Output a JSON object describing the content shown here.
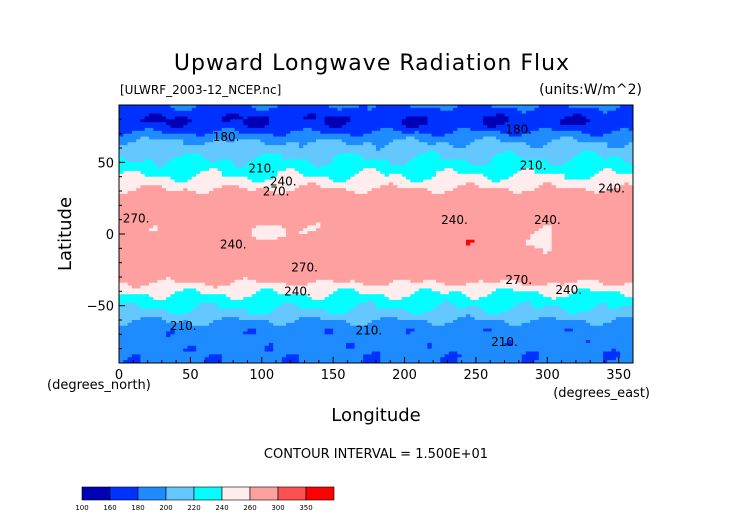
{
  "chart_data": {
    "type": "heatmap",
    "title": "Upward Longwave Radiation Flux",
    "file_label": "[ULWRF_2003-12_NCEP.nc]",
    "units_label": "(units:W/m^2)",
    "xlabel": "Longitude",
    "ylabel": "Latitude",
    "x_units_label": "(degrees_east)",
    "y_units_label": "(degrees_north)",
    "xlim": [
      0,
      360
    ],
    "ylim": [
      -90,
      90
    ],
    "x_ticks": [
      0,
      50,
      100,
      150,
      200,
      250,
      300,
      350
    ],
    "y_ticks": [
      -50,
      0,
      50
    ],
    "contour_interval_label": "CONTOUR INTERVAL = 1.500E+01",
    "contour_labels": [
      {
        "text": "180.",
        "x": 75,
        "y": 65
      },
      {
        "text": "180.",
        "x": 280,
        "y": 70
      },
      {
        "text": "210.",
        "x": 100,
        "y": 43
      },
      {
        "text": "210.",
        "x": 290,
        "y": 45
      },
      {
        "text": "240.",
        "x": 115,
        "y": 34
      },
      {
        "text": "240.",
        "x": 345,
        "y": 29
      },
      {
        "text": "270.",
        "x": 110,
        "y": 27
      },
      {
        "text": "270.",
        "x": 12,
        "y": 8
      },
      {
        "text": "240.",
        "x": 235,
        "y": 7
      },
      {
        "text": "240.",
        "x": 300,
        "y": 7
      },
      {
        "text": "240.",
        "x": 80,
        "y": -10
      },
      {
        "text": "270.",
        "x": 130,
        "y": -26
      },
      {
        "text": "270.",
        "x": 280,
        "y": -35
      },
      {
        "text": "240.",
        "x": 125,
        "y": -43
      },
      {
        "text": "240.",
        "x": 315,
        "y": -42
      },
      {
        "text": "210.",
        "x": 45,
        "y": -67
      },
      {
        "text": "210.",
        "x": 175,
        "y": -70
      },
      {
        "text": "210.",
        "x": 270,
        "y": -78
      }
    ],
    "colorbar": {
      "levels": [
        "100",
        "160",
        "180",
        "200",
        "220",
        "240",
        "260",
        "300",
        "350"
      ],
      "colors": [
        "#0000b4",
        "#0032ff",
        "#1e8cff",
        "#64c8ff",
        "#00ffff",
        "#ffecec",
        "#ffa0a0",
        "#ff5050",
        "#ff0000"
      ]
    }
  }
}
